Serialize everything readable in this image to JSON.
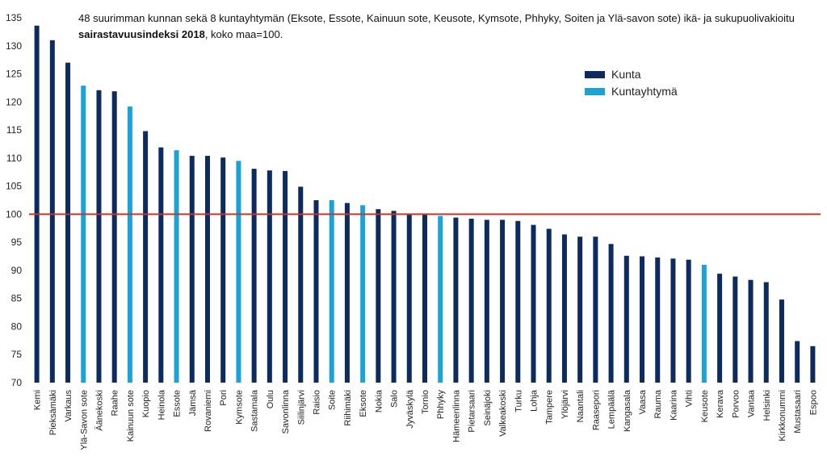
{
  "chart_data": {
    "type": "bar",
    "title_line1": "48 suurimman kunnan sekä 8 kuntayhtymän (Eksote, Essote, Kainuun sote, Keusote, Kymsote, Phhyky, Soiten ja Ylä-savon sote) ikä- ja sukupuolivakioitu",
    "title_line2_bold": "sairastavuusindeksi 2018",
    "title_line2_rest": ", koko maa=100.",
    "xlabel": "",
    "ylabel": "",
    "ylim": [
      70,
      135
    ],
    "yticks": [
      70,
      75,
      80,
      85,
      90,
      95,
      100,
      105,
      110,
      115,
      120,
      125,
      130,
      135
    ],
    "reference_value": 100,
    "reference_color": "#C0392B",
    "grid": false,
    "legend_position": "top-right",
    "series": [
      {
        "name": "Kunta",
        "color": "#0D2B5E"
      },
      {
        "name": "Kuntayhtymä",
        "color": "#1BA3D6"
      }
    ],
    "categories": [
      "Kemi",
      "Pieksämäki",
      "Varkaus",
      "Ylä-Savon sote",
      "Äänekoski",
      "Raahe",
      "Kainuun sote",
      "Kuopio",
      "Heinola",
      "Essote",
      "Jämsä",
      "Rovaniemi",
      "Pori",
      "Kymsote",
      "Sastamala",
      "Oulu",
      "Savonlinna",
      "Siilinjärvi",
      "Raisio",
      "Soite",
      "Riihimäki",
      "Eksote",
      "Nokia",
      "Salo",
      "Jyväskylä",
      "Tornio",
      "Phhyky",
      "Hämeenlinna",
      "Pietarsaari",
      "Seinäjoki",
      "Valkeakoski",
      "Turku",
      "Lohja",
      "Tampere",
      "Ylöjärvi",
      "Naantali",
      "Raasepori",
      "Lempäälä",
      "Kangasala",
      "Vaasa",
      "Rauma",
      "Kaarina",
      "Vihti",
      "Keusote",
      "Kerava",
      "Porvoo",
      "Vantaa",
      "Helsinki",
      "Kirkkonummi",
      "Mustasaari",
      "Espoo"
    ],
    "values": [
      133.6,
      131.0,
      127.0,
      122.9,
      122.1,
      121.9,
      119.2,
      114.8,
      111.9,
      111.4,
      110.4,
      110.4,
      110.1,
      109.5,
      108.1,
      107.8,
      107.7,
      104.9,
      102.5,
      102.5,
      102.0,
      101.6,
      100.9,
      100.6,
      100.1,
      100.0,
      99.7,
      99.4,
      99.2,
      99.0,
      99.0,
      98.8,
      98.1,
      97.4,
      96.4,
      96.0,
      96.0,
      94.7,
      92.6,
      92.5,
      92.3,
      92.1,
      91.9,
      91.0,
      89.4,
      88.9,
      88.3,
      87.9,
      84.8,
      77.4,
      76.5
    ],
    "groups": [
      "Kunta",
      "Kunta",
      "Kunta",
      "Kuntayhtymä",
      "Kunta",
      "Kunta",
      "Kuntayhtymä",
      "Kunta",
      "Kunta",
      "Kuntayhtymä",
      "Kunta",
      "Kunta",
      "Kunta",
      "Kuntayhtymä",
      "Kunta",
      "Kunta",
      "Kunta",
      "Kunta",
      "Kunta",
      "Kuntayhtymä",
      "Kunta",
      "Kuntayhtymä",
      "Kunta",
      "Kunta",
      "Kunta",
      "Kunta",
      "Kuntayhtymä",
      "Kunta",
      "Kunta",
      "Kunta",
      "Kunta",
      "Kunta",
      "Kunta",
      "Kunta",
      "Kunta",
      "Kunta",
      "Kunta",
      "Kunta",
      "Kunta",
      "Kunta",
      "Kunta",
      "Kunta",
      "Kunta",
      "Kuntayhtymä",
      "Kunta",
      "Kunta",
      "Kunta",
      "Kunta",
      "Kunta",
      "Kunta",
      "Kunta"
    ]
  }
}
